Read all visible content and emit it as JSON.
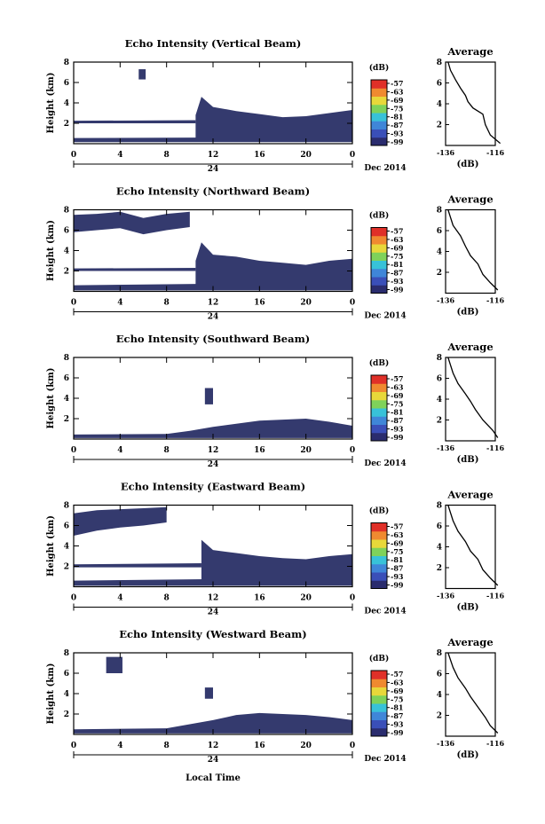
{
  "figure": {
    "xlabel": "Local Time",
    "date_label": "Dec 2014",
    "day_label": "24",
    "avg_title": "Average",
    "unit_label": "(dB)"
  },
  "chart_data": [
    {
      "type": "heatmap",
      "title": "Echo Intensity (Vertical Beam)",
      "ylabel": "Height (km)",
      "xlim": [
        0,
        24
      ],
      "ylim": [
        0,
        8
      ],
      "x_ticks": [
        "0",
        "4",
        "8",
        "12",
        "16",
        "20",
        "0"
      ],
      "y_ticks": [
        "2",
        "4",
        "6",
        "8"
      ],
      "colorbar": {
        "label": "(dB)",
        "ticks": [
          "-57",
          "-63",
          "-69",
          "-75",
          "-81",
          "-87",
          "-93",
          "-99"
        ],
        "colors": [
          "#2a2c6e",
          "#3a4fb8",
          "#3f86d8",
          "#38c2d8",
          "#7fd25a",
          "#e8d83a",
          "#f08a30",
          "#e03028"
        ]
      },
      "echo_color": "#343a6e",
      "layers": [
        {
          "x": [
            0,
            10.5,
            24
          ],
          "bottom": [
            0.15,
            0.15,
            0.15
          ],
          "top": [
            0.55,
            0.6,
            0.9
          ]
        },
        {
          "x": [
            0,
            10.5
          ],
          "bottom": [
            2.0,
            2.0
          ],
          "top": [
            2.25,
            2.3
          ]
        },
        {
          "x": [
            10.5,
            11,
            12,
            14,
            16,
            18,
            20,
            22,
            24
          ],
          "bottom": [
            0.3,
            0.3,
            0.3,
            0.3,
            0.3,
            0.3,
            0.3,
            0.3,
            0.3
          ],
          "top": [
            2.8,
            4.6,
            3.6,
            3.2,
            2.9,
            2.6,
            2.7,
            3.0,
            3.3
          ]
        },
        {
          "x": [
            5.6,
            6.2
          ],
          "bottom": [
            6.3,
            6.3
          ],
          "top": [
            7.3,
            7.3
          ]
        }
      ],
      "average": {
        "xlabel": "(dB)",
        "xlim": [
          -136,
          -116
        ],
        "xticks": [
          "-136",
          "-116"
        ],
        "ylim": [
          0,
          8
        ],
        "yticks": [
          "2",
          "4",
          "6",
          "8"
        ],
        "profile_x": [
          -114,
          -118,
          -120,
          -121,
          -125,
          -127,
          -128,
          -130,
          -132,
          -134,
          -135
        ],
        "profile_y": [
          0.2,
          1,
          2,
          3,
          3.6,
          4.2,
          4.8,
          5.5,
          6.3,
          7.2,
          8
        ]
      }
    },
    {
      "type": "heatmap",
      "title": "Echo Intensity (Northward Beam)",
      "ylabel": "Height (km)",
      "xlim": [
        0,
        24
      ],
      "ylim": [
        0,
        8
      ],
      "x_ticks": [
        "0",
        "4",
        "8",
        "12",
        "16",
        "20",
        "0"
      ],
      "y_ticks": [
        "2",
        "4",
        "6",
        "8"
      ],
      "colorbar": {
        "label": "(dB)",
        "ticks": [
          "-57",
          "-63",
          "-69",
          "-75",
          "-81",
          "-87",
          "-93",
          "-99"
        ],
        "colors": [
          "#2a2c6e",
          "#3a4fb8",
          "#3f86d8",
          "#38c2d8",
          "#7fd25a",
          "#e8d83a",
          "#f08a30",
          "#e03028"
        ]
      },
      "echo_color": "#343a6e",
      "layers": [
        {
          "x": [
            0,
            24
          ],
          "bottom": [
            0.1,
            0.1
          ],
          "top": [
            0.6,
            0.9
          ]
        },
        {
          "x": [
            0,
            10.5
          ],
          "bottom": [
            2.0,
            2.0
          ],
          "top": [
            2.25,
            2.3
          ]
        },
        {
          "x": [
            10.5,
            11,
            12,
            14,
            16,
            18,
            20,
            22,
            24
          ],
          "bottom": [
            0.3,
            0.3,
            0.3,
            0.3,
            0.3,
            0.3,
            0.3,
            0.3,
            0.3
          ],
          "top": [
            3.0,
            4.8,
            3.6,
            3.4,
            3.0,
            2.8,
            2.6,
            3.0,
            3.2
          ]
        },
        {
          "x": [
            0,
            2,
            4,
            6,
            8,
            10
          ],
          "bottom": [
            5.8,
            6.0,
            6.2,
            5.6,
            6.0,
            6.3
          ],
          "top": [
            7.5,
            7.6,
            7.8,
            7.2,
            7.6,
            7.8
          ]
        }
      ],
      "average": {
        "xlabel": "(dB)",
        "xlim": [
          -136,
          -116
        ],
        "xticks": [
          "-136",
          "-116"
        ],
        "ylim": [
          0,
          8
        ],
        "yticks": [
          "2",
          "4",
          "6",
          "8"
        ],
        "profile_x": [
          -115,
          -118,
          -121,
          -123,
          -126,
          -128,
          -130,
          -133,
          -135
        ],
        "profile_y": [
          0.3,
          1,
          1.8,
          2.8,
          3.6,
          4.5,
          5.5,
          6.5,
          8
        ]
      }
    },
    {
      "type": "heatmap",
      "title": "Echo Intensity (Southward Beam)",
      "ylabel": "Height (km)",
      "xlim": [
        0,
        24
      ],
      "ylim": [
        0,
        8
      ],
      "x_ticks": [
        "0",
        "4",
        "8",
        "12",
        "16",
        "20",
        "0"
      ],
      "y_ticks": [
        "2",
        "4",
        "6",
        "8"
      ],
      "colorbar": {
        "label": "(dB)",
        "ticks": [
          "-57",
          "-63",
          "-69",
          "-75",
          "-81",
          "-87",
          "-93",
          "-99"
        ],
        "colors": [
          "#2a2c6e",
          "#3a4fb8",
          "#3f86d8",
          "#38c2d8",
          "#7fd25a",
          "#e8d83a",
          "#f08a30",
          "#e03028"
        ]
      },
      "echo_color": "#343a6e",
      "layers": [
        {
          "x": [
            0,
            8,
            10,
            12,
            14,
            16,
            18,
            20,
            22,
            24
          ],
          "bottom": [
            0.1,
            0.1,
            0.1,
            0.1,
            0.1,
            0.1,
            0.1,
            0.1,
            0.1,
            0.1
          ],
          "top": [
            0.45,
            0.5,
            0.8,
            1.2,
            1.5,
            1.8,
            1.9,
            2.0,
            1.7,
            1.3
          ]
        },
        {
          "x": [
            11.3,
            12
          ],
          "bottom": [
            3.4,
            3.4
          ],
          "top": [
            5.0,
            5.0
          ]
        }
      ],
      "average": {
        "xlabel": "(dB)",
        "xlim": [
          -136,
          -116
        ],
        "xticks": [
          "-136",
          "-116"
        ],
        "ylim": [
          0,
          8
        ],
        "yticks": [
          "2",
          "4",
          "6",
          "8"
        ],
        "profile_x": [
          -115,
          -117,
          -121,
          -124,
          -126,
          -128,
          -131,
          -133,
          -135
        ],
        "profile_y": [
          0.3,
          1,
          2,
          3,
          3.8,
          4.5,
          5.5,
          6.5,
          8
        ]
      }
    },
    {
      "type": "heatmap",
      "title": "Echo Intensity (Eastward Beam)",
      "ylabel": "Height (km)",
      "xlim": [
        0,
        24
      ],
      "ylim": [
        0,
        8
      ],
      "x_ticks": [
        "0",
        "4",
        "8",
        "12",
        "16",
        "20",
        "0"
      ],
      "y_ticks": [
        "2",
        "4",
        "6",
        "8"
      ],
      "colorbar": {
        "label": "(dB)",
        "ticks": [
          "-57",
          "-63",
          "-69",
          "-75",
          "-81",
          "-87",
          "-93",
          "-99"
        ],
        "colors": [
          "#2a2c6e",
          "#3a4fb8",
          "#3f86d8",
          "#38c2d8",
          "#7fd25a",
          "#e8d83a",
          "#f08a30",
          "#e03028"
        ]
      },
      "echo_color": "#343a6e",
      "layers": [
        {
          "x": [
            0,
            24
          ],
          "bottom": [
            0.1,
            0.1
          ],
          "top": [
            0.6,
            0.9
          ]
        },
        {
          "x": [
            0,
            11
          ],
          "bottom": [
            1.9,
            1.9
          ],
          "top": [
            2.2,
            2.3
          ]
        },
        {
          "x": [
            11,
            12,
            14,
            16,
            18,
            20,
            22,
            24
          ],
          "bottom": [
            0.3,
            0.3,
            0.3,
            0.3,
            0.3,
            0.3,
            0.3,
            0.3
          ],
          "top": [
            4.6,
            3.6,
            3.3,
            3.0,
            2.8,
            2.7,
            3.0,
            3.2
          ]
        },
        {
          "x": [
            0,
            2,
            4,
            6,
            8
          ],
          "bottom": [
            5.0,
            5.5,
            5.8,
            6.0,
            6.3
          ],
          "top": [
            7.2,
            7.5,
            7.6,
            7.7,
            7.8
          ]
        }
      ],
      "average": {
        "xlabel": "(dB)",
        "xlim": [
          -136,
          -116
        ],
        "xticks": [
          "-136",
          "-116"
        ],
        "ylim": [
          0,
          8
        ],
        "yticks": [
          "2",
          "4",
          "6",
          "8"
        ],
        "profile_x": [
          -115,
          -118,
          -121,
          -123,
          -126,
          -128,
          -131,
          -133,
          -135
        ],
        "profile_y": [
          0.3,
          1,
          1.8,
          2.8,
          3.6,
          4.5,
          5.5,
          6.5,
          8
        ]
      }
    },
    {
      "type": "heatmap",
      "title": "Echo Intensity (Westward Beam)",
      "ylabel": "Height (km)",
      "xlim": [
        0,
        24
      ],
      "ylim": [
        0,
        8
      ],
      "x_ticks": [
        "0",
        "4",
        "8",
        "12",
        "16",
        "20",
        "0"
      ],
      "y_ticks": [
        "2",
        "4",
        "6",
        "8"
      ],
      "colorbar": {
        "label": "(dB)",
        "ticks": [
          "-57",
          "-63",
          "-69",
          "-75",
          "-81",
          "-87",
          "-93",
          "-99"
        ],
        "colors": [
          "#2a2c6e",
          "#3a4fb8",
          "#3f86d8",
          "#38c2d8",
          "#7fd25a",
          "#e8d83a",
          "#f08a30",
          "#e03028"
        ]
      },
      "echo_color": "#343a6e",
      "layers": [
        {
          "x": [
            0,
            8,
            10,
            12,
            14,
            16,
            18,
            20,
            22,
            24
          ],
          "bottom": [
            0.1,
            0.1,
            0.1,
            0.1,
            0.1,
            0.1,
            0.1,
            0.1,
            0.1,
            0.1
          ],
          "top": [
            0.5,
            0.6,
            1.0,
            1.4,
            1.9,
            2.1,
            2.0,
            1.9,
            1.7,
            1.4
          ]
        },
        {
          "x": [
            11.3,
            12
          ],
          "bottom": [
            3.5,
            3.5
          ],
          "top": [
            4.6,
            4.6
          ]
        },
        {
          "x": [
            2.8,
            4.2
          ],
          "bottom": [
            6.0,
            6.0
          ],
          "top": [
            7.6,
            7.6
          ]
        }
      ],
      "average": {
        "xlabel": "(dB)",
        "xlim": [
          -136,
          -116
        ],
        "xticks": [
          "-136",
          "-116"
        ],
        "ylim": [
          0,
          8
        ],
        "yticks": [
          "2",
          "4",
          "6",
          "8"
        ],
        "profile_x": [
          -115,
          -118,
          -120,
          -123,
          -126,
          -128,
          -131,
          -133,
          -135
        ],
        "profile_y": [
          0.3,
          1,
          1.8,
          2.8,
          3.8,
          4.6,
          5.6,
          6.6,
          8
        ]
      }
    }
  ]
}
